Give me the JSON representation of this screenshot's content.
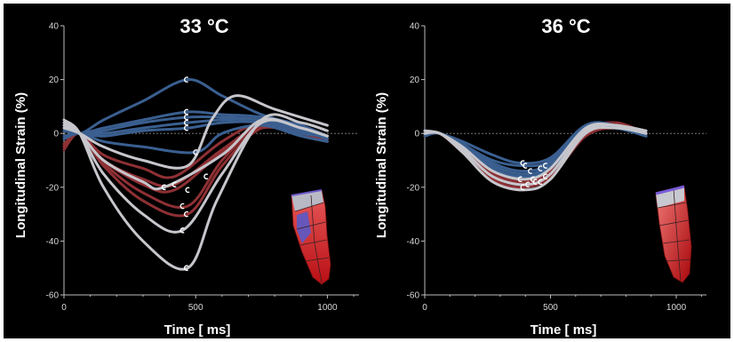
{
  "chart_data": [
    {
      "type": "line",
      "title": "33 °C",
      "xlabel": "Time [ ms]",
      "ylabel": "Longitudinal Strain (%)",
      "xlim": [
        0,
        1120
      ],
      "ylim": [
        -60,
        40
      ],
      "xticks": [
        "0",
        "500",
        "1000"
      ],
      "yticks": [
        "40",
        "20",
        "0",
        "-20",
        "-40",
        "-60"
      ],
      "grid": false,
      "series": [
        {
          "group": "blue",
          "x": [
            0,
            60,
            150,
            300,
            470,
            600,
            750,
            900,
            1000
          ],
          "y": [
            3,
            0,
            5,
            12,
            20,
            14,
            7,
            3,
            -1
          ],
          "marker": {
            "x": 465,
            "y": 20
          }
        },
        {
          "group": "blue",
          "x": [
            0,
            60,
            150,
            300,
            470,
            600,
            750,
            900,
            1000
          ],
          "y": [
            2,
            0,
            2,
            5,
            8,
            7,
            6,
            2,
            -1
          ],
          "marker": {
            "x": 465,
            "y": 8
          }
        },
        {
          "group": "blue",
          "x": [
            0,
            60,
            150,
            300,
            470,
            600,
            750,
            900,
            1000
          ],
          "y": [
            1,
            0,
            1,
            4,
            6,
            6,
            5,
            1,
            -2
          ],
          "marker": {
            "x": 465,
            "y": 6
          }
        },
        {
          "group": "blue",
          "x": [
            0,
            60,
            150,
            300,
            470,
            600,
            750,
            900,
            1000
          ],
          "y": [
            1,
            0,
            0,
            2,
            4,
            5,
            5,
            1,
            -2
          ],
          "marker": {
            "x": 465,
            "y": 4
          }
        },
        {
          "group": "blue",
          "x": [
            0,
            60,
            150,
            300,
            470,
            600,
            750,
            900,
            1000
          ],
          "y": [
            -1,
            0,
            -1,
            1,
            2,
            4,
            4,
            0,
            -1
          ],
          "marker": {
            "x": 465,
            "y": 2
          }
        },
        {
          "group": "blue",
          "x": [
            0,
            60,
            150,
            300,
            500,
            600,
            750,
            900,
            1000
          ],
          "y": [
            -2,
            0,
            -3,
            -5,
            -7,
            0,
            3,
            -1,
            -3
          ],
          "marker": {
            "x": 500,
            "y": -7
          }
        },
        {
          "group": "red",
          "x": [
            0,
            60,
            150,
            300,
            420,
            600,
            750,
            900,
            1000
          ],
          "y": [
            -4,
            0,
            -8,
            -13,
            -16,
            -3,
            4,
            1,
            -1
          ],
          "marker": {
            "x": 540,
            "y": -16
          }
        },
        {
          "group": "red",
          "x": [
            0,
            60,
            150,
            300,
            420,
            600,
            750,
            900,
            1000
          ],
          "y": [
            -5,
            0,
            -10,
            -17,
            -19,
            -6,
            3,
            0,
            -2
          ],
          "marker": {
            "x": 420,
            "y": -19
          }
        },
        {
          "group": "red",
          "x": [
            0,
            60,
            150,
            300,
            420,
            600,
            750,
            900,
            1000
          ],
          "y": [
            -6,
            0,
            -10,
            -19,
            -21,
            -7,
            2,
            0,
            -2
          ],
          "marker": {
            "x": 470,
            "y": -21
          }
        },
        {
          "group": "red",
          "x": [
            0,
            60,
            150,
            300,
            470,
            600,
            750,
            900,
            1000
          ],
          "y": [
            -5,
            0,
            -12,
            -25,
            -30,
            -12,
            2,
            0,
            -3
          ],
          "marker": {
            "x": 465,
            "y": -30
          }
        },
        {
          "group": "red",
          "x": [
            0,
            60,
            150,
            300,
            470,
            600,
            750,
            900,
            1000
          ],
          "y": [
            -4,
            0,
            -11,
            -22,
            -27,
            -10,
            3,
            1,
            -2
          ],
          "marker": {
            "x": 450,
            "y": -27
          }
        },
        {
          "group": "white",
          "x": [
            0,
            60,
            150,
            300,
            470,
            580,
            750,
            900,
            1000
          ],
          "y": [
            5,
            0,
            -20,
            -40,
            -50,
            -25,
            5,
            4,
            1
          ],
          "marker": {
            "x": 465,
            "y": -50
          }
        },
        {
          "group": "white",
          "x": [
            0,
            60,
            150,
            300,
            450,
            600,
            750,
            900,
            1000
          ],
          "y": [
            4,
            0,
            -15,
            -30,
            -36,
            -15,
            4,
            2,
            -1
          ],
          "marker": {
            "x": 450,
            "y": -36
          }
        },
        {
          "group": "white",
          "x": [
            0,
            60,
            150,
            300,
            380,
            600,
            750,
            900,
            1000
          ],
          "y": [
            3,
            0,
            -10,
            -18,
            -20,
            -8,
            5,
            2,
            -1
          ],
          "marker": {
            "x": 380,
            "y": -20
          }
        },
        {
          "group": "white",
          "x": [
            0,
            60,
            150,
            300,
            470,
            560,
            650,
            800,
            1000
          ],
          "y": [
            2,
            0,
            -5,
            -10,
            -12,
            5,
            14,
            9,
            3
          ],
          "marker": null
        }
      ]
    },
    {
      "type": "line",
      "title": "36 °C",
      "xlabel": "Time [ ms]",
      "ylabel": "Longitudinal Strain (%)",
      "xlim": [
        0,
        1120
      ],
      "ylim": [
        -60,
        40
      ],
      "xticks": [
        "0",
        "500",
        "1000"
      ],
      "yticks": [
        "40",
        "20",
        "0",
        "-20",
        "-40",
        "-60"
      ],
      "grid": false,
      "series": [
        {
          "group": "blue",
          "x": [
            0,
            60,
            150,
            270,
            380,
            500,
            640,
            760,
            880
          ],
          "y": [
            1,
            0,
            -3,
            -8,
            -11,
            -9,
            3,
            2,
            1
          ],
          "marker": {
            "x": 390,
            "y": -11
          }
        },
        {
          "group": "blue",
          "x": [
            0,
            60,
            150,
            270,
            390,
            500,
            640,
            760,
            880
          ],
          "y": [
            1,
            0,
            -4,
            -10,
            -12,
            -10,
            3,
            3,
            0
          ],
          "marker": {
            "x": 400,
            "y": -12
          }
        },
        {
          "group": "blue",
          "x": [
            0,
            60,
            150,
            270,
            390,
            500,
            640,
            760,
            880
          ],
          "y": [
            0,
            0,
            -4,
            -11,
            -14,
            -11,
            2,
            3,
            0
          ],
          "marker": {
            "x": 420,
            "y": -14
          }
        },
        {
          "group": "blue",
          "x": [
            0,
            60,
            150,
            270,
            390,
            500,
            640,
            760,
            880
          ],
          "y": [
            0,
            0,
            -5,
            -12,
            -15,
            -12,
            2,
            2,
            -1
          ],
          "marker": {
            "x": 460,
            "y": -13
          }
        },
        {
          "group": "blue",
          "x": [
            0,
            60,
            150,
            270,
            390,
            500,
            640,
            760,
            880
          ],
          "y": [
            -1,
            0,
            -5,
            -13,
            -16,
            -13,
            1,
            2,
            -1
          ],
          "marker": {
            "x": 480,
            "y": -12
          }
        },
        {
          "group": "red",
          "x": [
            0,
            60,
            150,
            270,
            390,
            500,
            640,
            760,
            880
          ],
          "y": [
            0,
            0,
            -6,
            -15,
            -18,
            -15,
            0,
            3,
            0
          ],
          "marker": {
            "x": 380,
            "y": -17
          }
        },
        {
          "group": "red",
          "x": [
            0,
            60,
            150,
            270,
            390,
            500,
            640,
            760,
            880
          ],
          "y": [
            -1,
            0,
            -7,
            -16,
            -19,
            -16,
            -1,
            2,
            -1
          ],
          "marker": {
            "x": 430,
            "y": -17
          }
        },
        {
          "group": "red",
          "x": [
            0,
            60,
            150,
            270,
            390,
            500,
            640,
            760,
            880
          ],
          "y": [
            0,
            0,
            -7,
            -17,
            -20,
            -16,
            0,
            3,
            0
          ],
          "marker": {
            "x": 460,
            "y": -18
          }
        },
        {
          "group": "red",
          "x": [
            0,
            60,
            150,
            270,
            390,
            500,
            640,
            760,
            880
          ],
          "y": [
            -1,
            0,
            -6,
            -15,
            -18,
            -14,
            1,
            4,
            0
          ],
          "marker": {
            "x": 480,
            "y": -16
          }
        },
        {
          "group": "white",
          "x": [
            0,
            60,
            150,
            270,
            400,
            500,
            640,
            760,
            880
          ],
          "y": [
            0,
            0,
            -7,
            -18,
            -21,
            -17,
            0,
            2,
            0
          ],
          "marker": {
            "x": 390,
            "y": -20
          }
        },
        {
          "group": "white",
          "x": [
            0,
            60,
            150,
            270,
            400,
            500,
            640,
            760,
            880
          ],
          "y": [
            0,
            0,
            -6,
            -16,
            -19,
            -15,
            1,
            3,
            0
          ],
          "marker": {
            "x": 410,
            "y": -19
          }
        },
        {
          "group": "white",
          "x": [
            0,
            60,
            150,
            270,
            400,
            500,
            640,
            760,
            880
          ],
          "y": [
            1,
            0,
            -5,
            -14,
            -17,
            -13,
            2,
            3,
            1
          ],
          "marker": {
            "x": 440,
            "y": -18
          }
        }
      ]
    }
  ],
  "colors": {
    "blue": "#3a5f90",
    "red": "#8e3034",
    "white": "#c6c6cc",
    "marker": "#ffffff",
    "background": "#000000",
    "axis": "#bdbdbd",
    "zero_line": "#8a8a8a"
  }
}
